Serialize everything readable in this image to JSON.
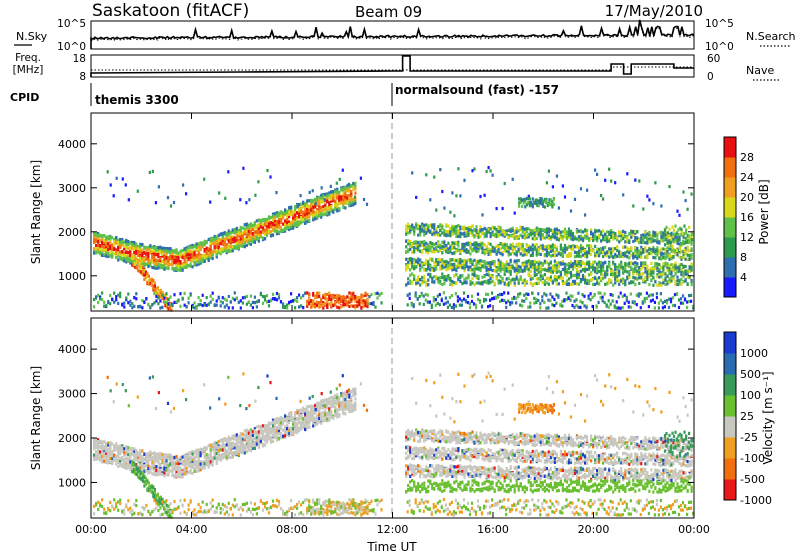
{
  "header": {
    "station": "Saskatoon (fitACF)",
    "beam": "Beam 09",
    "date": "17/May/2010"
  },
  "noise_panel": {
    "left_label": "N.Sky",
    "left_ticks": [
      "10^5",
      "10^0"
    ],
    "right_ticks": [
      "10^5",
      "10^0"
    ],
    "right_label": "N.Search"
  },
  "freq_panel": {
    "left_label_1": "Freq.",
    "left_label_2": "[MHz]",
    "left_ticks": [
      "18",
      "8"
    ],
    "right_ticks": [
      "60",
      "0"
    ],
    "right_label": "Nave"
  },
  "cpid": {
    "label": "CPID",
    "segments": [
      {
        "name": "themis 3300",
        "start_h": 0.0
      },
      {
        "name": "normalsound (fast) -157",
        "start_h": 12.0
      }
    ]
  },
  "time_axis": {
    "title": "Time UT",
    "ticks": [
      "00:00",
      "04:00",
      "08:00",
      "12:00",
      "16:00",
      "20:00",
      "00:00"
    ]
  },
  "chart_data": [
    {
      "type": "heatmap",
      "name": "power",
      "ylabel": "Slant Range [km]",
      "x_range_h": [
        0,
        24
      ],
      "ylim": [
        200,
        4700
      ],
      "yticks": [
        "1000",
        "2000",
        "3000",
        "4000"
      ],
      "colorbar_label": "Power [dB]",
      "colorbar_ticks": [
        "4",
        "8",
        "12",
        "16",
        "20",
        "24",
        "28"
      ],
      "colors": [
        "#1a1aff",
        "#2f6fb0",
        "#2e9a4e",
        "#5fc14a",
        "#d8d81a",
        "#f0a020",
        "#f07010",
        "#e81010"
      ]
    },
    {
      "type": "heatmap",
      "name": "velocity",
      "ylabel": "Slant Range [km]",
      "x_range_h": [
        0,
        24
      ],
      "ylim": [
        200,
        4700
      ],
      "yticks": [
        "1000",
        "2000",
        "3000",
        "4000"
      ],
      "colorbar_label": "Velocity [m s⁻¹]",
      "colorbar_ticks": [
        "1000",
        "500",
        "100",
        "25",
        "-25",
        "-100",
        "-500",
        "-1000"
      ],
      "colors": [
        "#1a3ad0",
        "#2a6ab0",
        "#3a9a5a",
        "#6ac030",
        "#c8c8c0",
        "#f0a020",
        "#f07010",
        "#e81818"
      ]
    }
  ]
}
